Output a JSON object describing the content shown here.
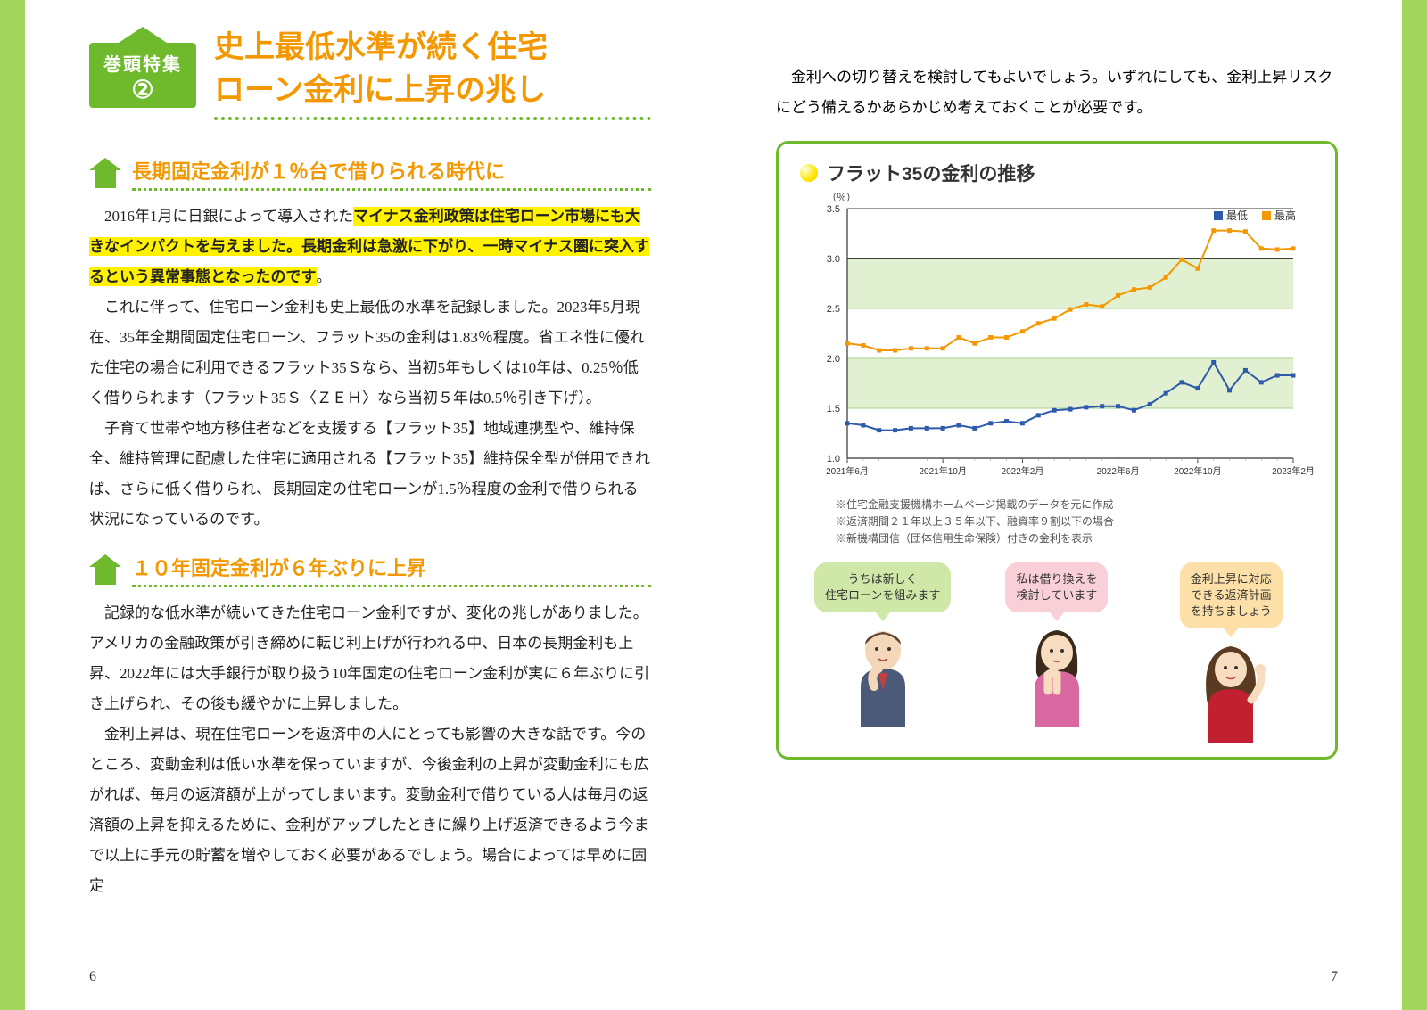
{
  "badge": {
    "label": "巻頭特集",
    "num": "②"
  },
  "main_title_l1": "史上最低水準が続く住宅",
  "main_title_l2": "ローン金利に上昇の兆し",
  "section1": {
    "title": "長期固定金利が１％台で借りられる時代に",
    "p1_pre": "　2016年1月に日銀によって導入された",
    "p1_hl": "マイナス金利政策は住宅ローン市場にも大きなインパクトを与えました。長期金利は急激に下がり、一時マイナス圏に突入するという異常事態となったのです",
    "p1_post": "。",
    "p2": "これに伴って、住宅ローン金利も史上最低の水準を記録しました。2023年5月現在、35年全期間固定住宅ローン、フラット35の金利は1.83％程度。省エネ性に優れた住宅の場合に利用できるフラット35Ｓなら、当初5年もしくは10年は、0.25％低く借りられます（フラット35Ｓ〈ＺＥＨ〉なら当初５年は0.5％引き下げ）。",
    "p3": "子育て世帯や地方移住者などを支援する【フラット35】地域連携型や、維持保全、維持管理に配慮した住宅に適用される【フラット35】維持保全型が併用できれば、さらに低く借りられ、長期固定の住宅ローンが1.5％程度の金利で借りられる状況になっているのです。"
  },
  "section2": {
    "title": "１０年固定金利が６年ぶりに上昇",
    "p1": "記録的な低水準が続いてきた住宅ローン金利ですが、変化の兆しがありました。アメリカの金融政策が引き締めに転じ利上げが行われる中、日本の長期金利も上昇、2022年には大手銀行が取り扱う10年固定の住宅ローン金利が実に６年ぶりに引き上げられ、その後も緩やかに上昇しました。",
    "p2": "金利上昇は、現在住宅ローンを返済中の人にとっても影響の大きな話です。今のところ、変動金利は低い水準を保っていますが、今後金利の上昇が変動金利にも広がれば、毎月の返済額が上がってしまいます。変動金利で借りている人は毎月の返済額の上昇を抑えるために、金利がアップしたときに繰り上げ返済できるよう今まで以上に手元の貯蓄を増やしておく必要があるでしょう。場合によっては早めに固定"
  },
  "right_intro": "金利への切り替えを検討してもよいでしょう。いずれにしても、金利上昇リスクにどう備えるかあらかじめ考えておくことが必要です。",
  "chart": {
    "title": "フラット35の金利の推移",
    "type": "line",
    "y_unit": "（％）",
    "ylim": [
      1.0,
      3.5
    ],
    "ytick_step": 0.5,
    "yticks": [
      "3.5",
      "3.0",
      "2.5",
      "2.0",
      "1.5",
      "1.0"
    ],
    "x_labels": [
      "2021年6月",
      "2021年10月",
      "2022年2月",
      "2022年6月",
      "2022年10月",
      "2023年2月"
    ],
    "legend": {
      "low": "最低",
      "high": "最高"
    },
    "colors": {
      "low": "#2e5aac",
      "high": "#f39800",
      "grid": "#a6d08a",
      "band": "#e2f0d2",
      "axis": "#333333",
      "bg": "#ffffff"
    },
    "series_low": [
      1.35,
      1.33,
      1.28,
      1.28,
      1.3,
      1.3,
      1.3,
      1.33,
      1.3,
      1.35,
      1.37,
      1.35,
      1.43,
      1.48,
      1.49,
      1.51,
      1.52,
      1.52,
      1.48,
      1.54,
      1.65,
      1.76,
      1.7,
      1.96,
      1.68,
      1.88,
      1.76,
      1.83,
      1.83
    ],
    "series_high": [
      2.15,
      2.13,
      2.08,
      2.08,
      2.1,
      2.1,
      2.1,
      2.21,
      2.15,
      2.21,
      2.21,
      2.27,
      2.35,
      2.4,
      2.49,
      2.54,
      2.52,
      2.63,
      2.69,
      2.71,
      2.81,
      2.99,
      2.9,
      3.28,
      3.28,
      3.27,
      3.1,
      3.09,
      3.1
    ],
    "line_width": 2,
    "marker_size": 5
  },
  "notes": {
    "n1": "※住宅金融支援機構ホームページ掲載のデータを元に作成",
    "n2": "※返済期間２１年以上３５年以下、融資率９割以下の場合",
    "n3": "※新機構団信（団体信用生命保険）付きの金利を表示"
  },
  "bubbles": {
    "b1": "うちは新しく\n住宅ローンを組みます",
    "b2": "私は借り換えを\n検討しています",
    "b3": "金利上昇に対応\nできる返済計画\nを持ちましょう"
  },
  "page_left": "6",
  "page_right": "7"
}
